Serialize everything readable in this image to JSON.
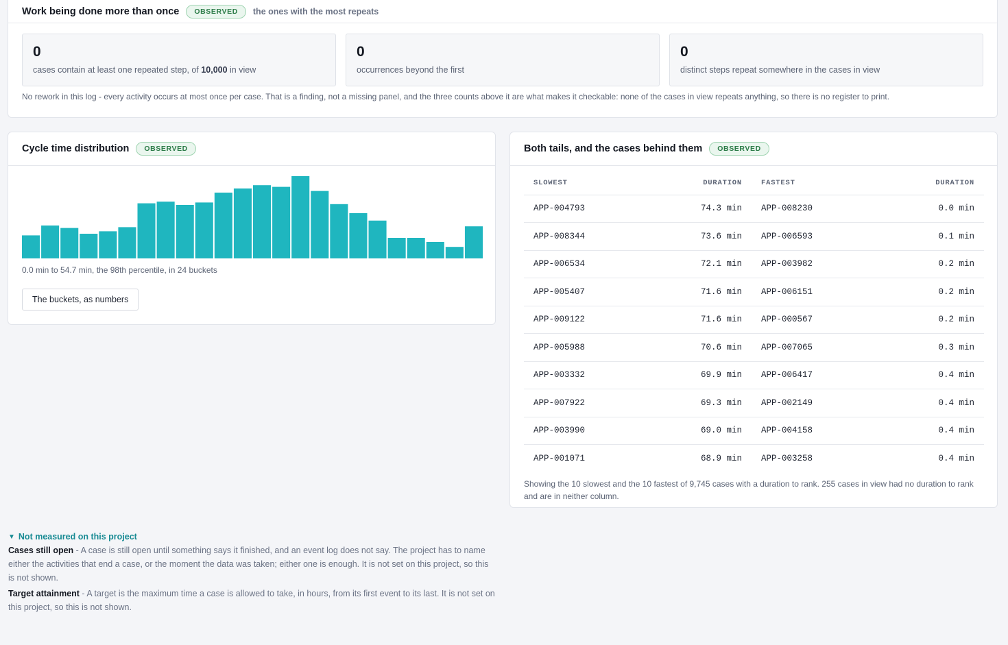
{
  "rework": {
    "title": "Work being done more than once",
    "badge": "OBSERVED",
    "subtitle": "the ones with the most repeats",
    "stats": [
      {
        "value": "0",
        "label_pre": "cases contain at least one repeated step, of ",
        "label_bold": "10,000",
        "label_post": " in view"
      },
      {
        "value": "0",
        "label": "occurrences beyond the first"
      },
      {
        "value": "0",
        "label": "distinct steps repeat somewhere in the cases in view"
      }
    ],
    "note": "No rework in this log - every activity occurs at most once per case. That is a finding, not a missing panel, and the three counts above it are what makes it checkable: none of the cases in view repeats anything, so there is no register to print."
  },
  "histogram": {
    "title": "Cycle time distribution",
    "badge": "OBSERVED",
    "caption": "0.0 min to 54.7 min, the 98th percentile, in 24 buckets",
    "button_label": "The buckets, as numbers",
    "bar_color": "#1fb6bf"
  },
  "chart_data": {
    "type": "bar",
    "title": "Cycle time distribution",
    "x_range_min": [
      0.0,
      54.7
    ],
    "bucket_count": 24,
    "relative_counts": [
      0.28,
      0.4,
      0.37,
      0.3,
      0.33,
      0.38,
      0.67,
      0.69,
      0.65,
      0.68,
      0.8,
      0.85,
      0.89,
      0.87,
      1.0,
      0.82,
      0.66,
      0.55,
      0.46,
      0.25,
      0.25,
      0.2,
      0.14,
      0.39
    ]
  },
  "tails": {
    "title": "Both tails, and the cases behind them",
    "badge": "OBSERVED",
    "headers": {
      "slowest": "SLOWEST",
      "duration1": "DURATION",
      "fastest": "FASTEST",
      "duration2": "DURATION"
    },
    "rows": [
      {
        "slow_id": "APP-004793",
        "slow_dur": "74.3 min",
        "fast_id": "APP-008230",
        "fast_dur": "0.0 min"
      },
      {
        "slow_id": "APP-008344",
        "slow_dur": "73.6 min",
        "fast_id": "APP-006593",
        "fast_dur": "0.1 min"
      },
      {
        "slow_id": "APP-006534",
        "slow_dur": "72.1 min",
        "fast_id": "APP-003982",
        "fast_dur": "0.2 min"
      },
      {
        "slow_id": "APP-005407",
        "slow_dur": "71.6 min",
        "fast_id": "APP-006151",
        "fast_dur": "0.2 min"
      },
      {
        "slow_id": "APP-009122",
        "slow_dur": "71.6 min",
        "fast_id": "APP-000567",
        "fast_dur": "0.2 min"
      },
      {
        "slow_id": "APP-005988",
        "slow_dur": "70.6 min",
        "fast_id": "APP-007065",
        "fast_dur": "0.3 min"
      },
      {
        "slow_id": "APP-003332",
        "slow_dur": "69.9 min",
        "fast_id": "APP-006417",
        "fast_dur": "0.4 min"
      },
      {
        "slow_id": "APP-007922",
        "slow_dur": "69.3 min",
        "fast_id": "APP-002149",
        "fast_dur": "0.4 min"
      },
      {
        "slow_id": "APP-003990",
        "slow_dur": "69.0 min",
        "fast_id": "APP-004158",
        "fast_dur": "0.4 min"
      },
      {
        "slow_id": "APP-001071",
        "slow_dur": "68.9 min",
        "fast_id": "APP-003258",
        "fast_dur": "0.4 min"
      }
    ],
    "note": "Showing the 10 slowest and the 10 fastest of 9,745 cases with a duration to rank. 255 cases in view had no duration to rank and are in neither column."
  },
  "not_measured": {
    "heading": "Not measured on this project",
    "arrow_icon": "triangle-down-icon",
    "items": [
      {
        "name": "Cases still open",
        "text": " - A case is still open until something says it finished, and an event log does not say. The project has to name either the activities that end a case, or the moment the data was taken; either one is enough. It is not set on this project, so this is not shown."
      },
      {
        "name": "Target attainment",
        "text": " - A target is the maximum time a case is allowed to take, in hours, from its first event to its last. It is not set on this project, so this is not shown."
      }
    ]
  }
}
